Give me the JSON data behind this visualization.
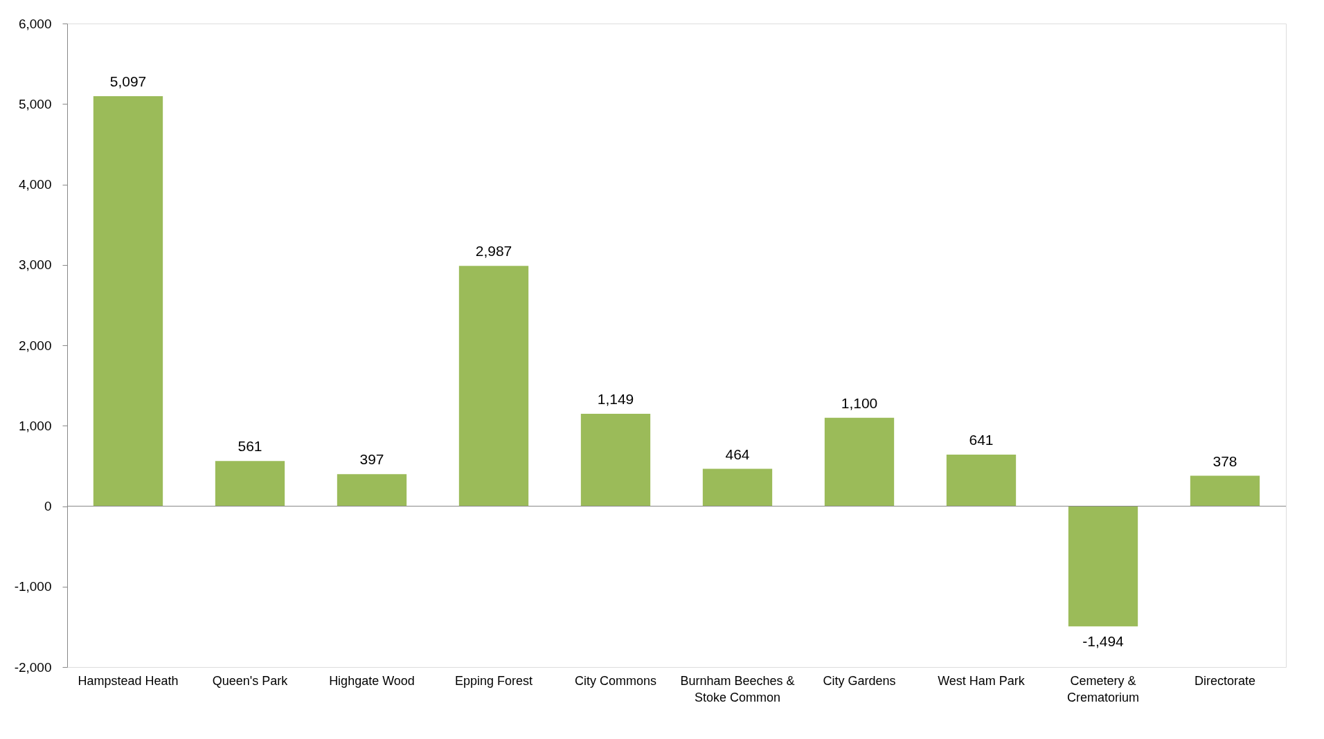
{
  "chart_data": {
    "type": "bar",
    "categories": [
      "Hampstead Heath",
      "Queen's Park",
      "Highgate Wood",
      "Epping Forest",
      "City Commons",
      "Burnham Beeches & Stoke Common",
      "City Gardens",
      "West Ham Park",
      "Cemetery & Crematorium",
      "Directorate"
    ],
    "values": [
      5097,
      561,
      397,
      2987,
      1149,
      464,
      1100,
      641,
      -1494,
      378
    ],
    "color": "#9bbb59",
    "ylim": [
      -2000,
      6000
    ],
    "yticks": [
      {
        "value": -2000,
        "label": "-2,000"
      },
      {
        "value": -1000,
        "label": "-1,000"
      },
      0,
      {
        "value": 1000,
        "label": "1,000"
      },
      {
        "value": 2000,
        "label": "2,000"
      },
      {
        "value": 3000,
        "label": "3,000"
      },
      {
        "value": 4000,
        "label": "4,000"
      },
      {
        "value": 5000,
        "label": "5,000"
      },
      {
        "value": 6000,
        "label": "6,000"
      }
    ],
    "value_labels": [
      "5,097",
      "561",
      "397",
      "2,987",
      "1,149",
      "464",
      "1,100",
      "641",
      "-1,494",
      "378"
    ]
  }
}
